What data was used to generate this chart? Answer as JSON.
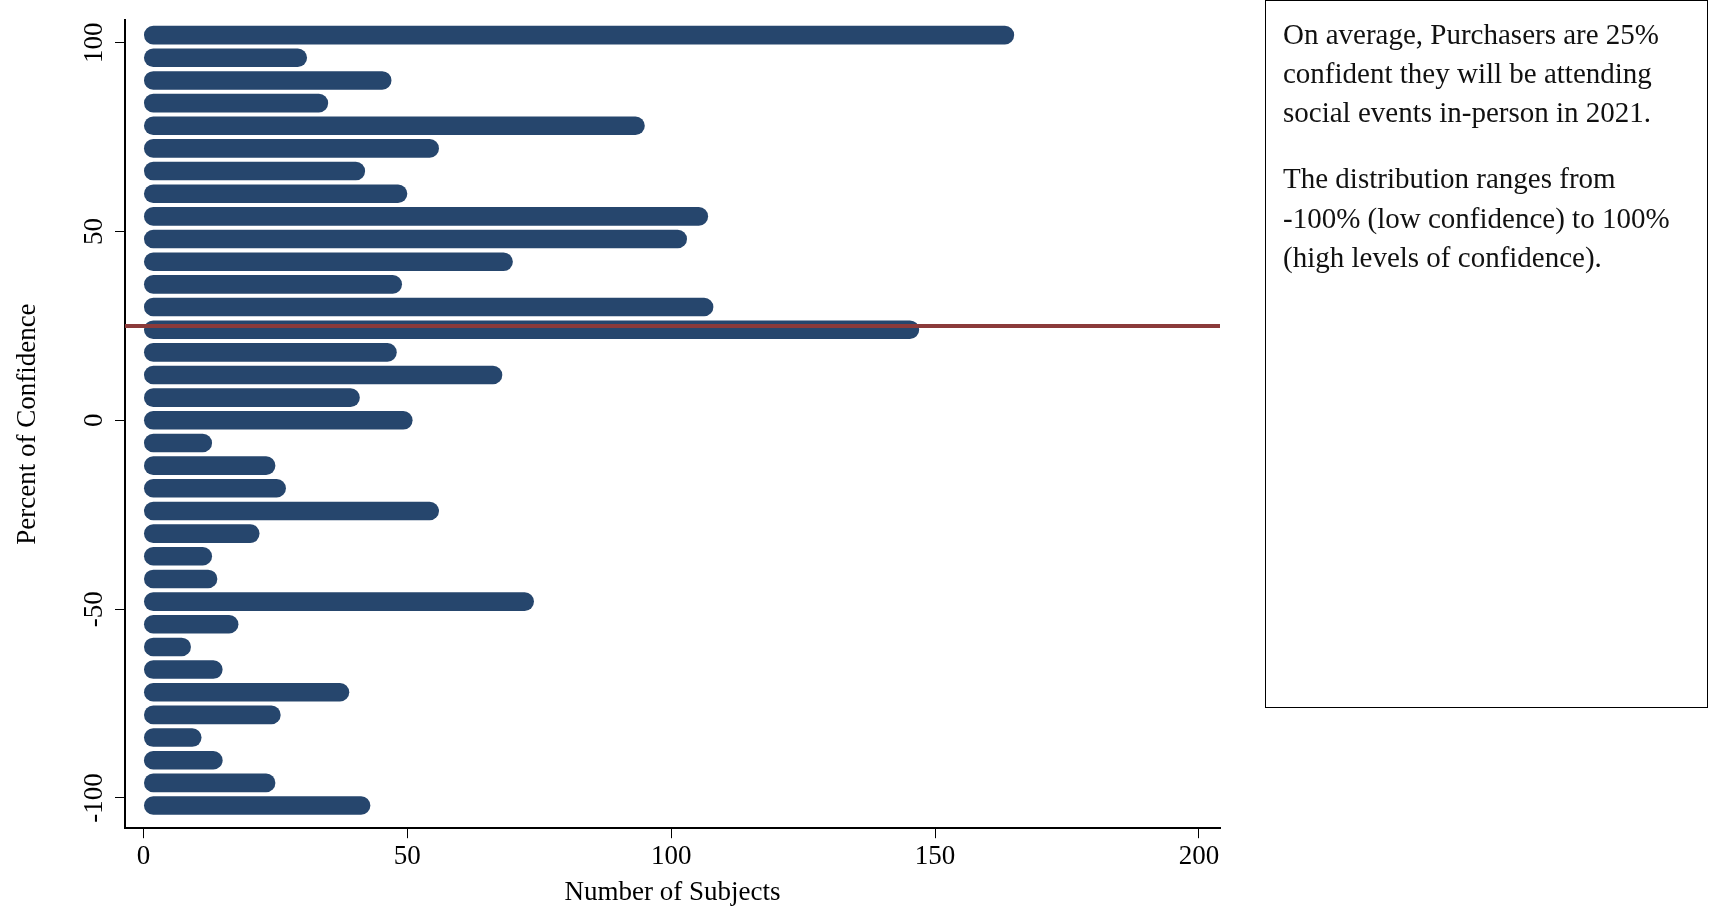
{
  "chart_data": {
    "type": "histogram",
    "orientation": "horizontal",
    "xlabel": "Number of Subjects",
    "ylabel": "Percent of Confidence",
    "bins": [
      -105,
      -99,
      -93,
      -87,
      -81,
      -75,
      -69,
      -63,
      -57,
      -51,
      -45,
      -39,
      -33,
      -27,
      -21,
      -15,
      -9,
      -3,
      3,
      9,
      15,
      21,
      27,
      33,
      39,
      45,
      51,
      57,
      63,
      69,
      75,
      81,
      87,
      93,
      99,
      105
    ],
    "values": [
      43,
      25,
      15,
      11,
      26,
      39,
      15,
      9,
      18,
      74,
      14,
      13,
      22,
      56,
      27,
      25,
      13,
      51,
      41,
      68,
      48,
      147,
      108,
      49,
      70,
      103,
      107,
      50,
      42,
      56,
      95,
      35,
      47,
      31,
      165
    ],
    "color": "#26466d",
    "xlim": [
      -3.5,
      204
    ],
    "xticks": [
      0,
      50,
      100,
      150,
      200
    ],
    "ylim": [
      -108,
      106
    ],
    "yticks": [
      -100,
      -50,
      0,
      50,
      100
    ],
    "ref_lines": [
      {
        "axis": "y",
        "value": 25,
        "color": "#8b3a3a"
      }
    ],
    "grid": false,
    "legend": false,
    "annotations": [
      "On average, Purchasers are 25% confident they will be attending social events in-person in 2021.",
      "The distribution ranges from -100% (low confidence) to 100% (high levels of confidence)."
    ]
  }
}
